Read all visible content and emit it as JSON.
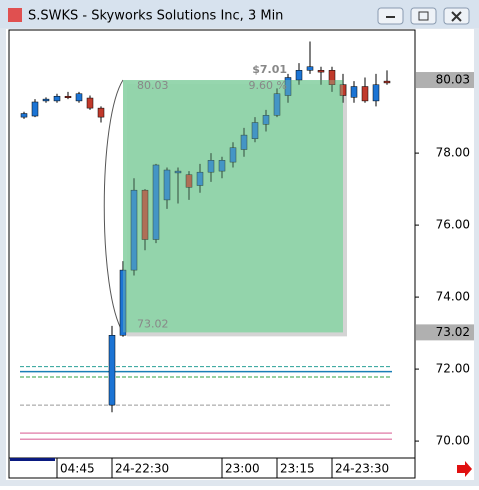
{
  "window_title": "S.SWKS - Skyworks Solutions Inc, 3 Min",
  "chart_data": {
    "type": "candlestick",
    "categories": [
      null,
      null,
      null,
      "04:45",
      null,
      null,
      null,
      null,
      "24-22:30",
      null,
      null,
      null,
      null,
      null,
      null,
      null,
      null,
      null,
      "23:00",
      null,
      null,
      null,
      null,
      "23:15",
      null,
      null,
      null,
      null,
      "24-23:30",
      null,
      null,
      null,
      null,
      null
    ],
    "open": [
      79.0,
      79.03,
      79.45,
      79.45,
      79.58,
      79.45,
      79.53,
      79.25,
      71.0,
      72.94,
      74.75,
      76.97,
      75.6,
      76.7,
      77.45,
      77.4,
      77.1,
      77.47,
      77.5,
      77.75,
      78.1,
      78.4,
      78.8,
      79.05,
      79.6,
      80.03,
      80.3,
      80.3,
      80.3,
      79.9,
      79.55,
      79.85,
      79.45,
      80.0
    ],
    "high": [
      79.15,
      79.5,
      79.55,
      79.65,
      79.7,
      79.7,
      79.6,
      79.3,
      73.2,
      75.0,
      77.3,
      77.0,
      77.7,
      77.6,
      77.6,
      77.5,
      77.7,
      78.0,
      77.9,
      78.3,
      78.7,
      79.0,
      79.2,
      79.8,
      80.2,
      80.5,
      81.1,
      80.4,
      80.4,
      80.2,
      80.0,
      80.1,
      80.2,
      80.3
    ],
    "low": [
      78.95,
      79.0,
      79.4,
      79.4,
      79.5,
      79.4,
      79.2,
      78.85,
      70.8,
      72.9,
      74.6,
      75.3,
      75.5,
      76.45,
      76.6,
      76.7,
      76.9,
      77.2,
      77.3,
      77.6,
      77.9,
      78.3,
      78.6,
      79.0,
      79.4,
      79.9,
      80.2,
      79.9,
      79.7,
      79.4,
      79.4,
      79.4,
      79.3,
      79.9
    ],
    "close": [
      79.1,
      79.42,
      79.5,
      79.58,
      79.55,
      79.65,
      79.25,
      79.0,
      72.94,
      74.75,
      76.97,
      75.6,
      77.67,
      77.53,
      77.5,
      77.05,
      77.47,
      77.8,
      77.8,
      78.15,
      78.5,
      78.85,
      79.05,
      79.65,
      80.1,
      80.3,
      80.4,
      80.25,
      79.9,
      79.6,
      79.85,
      79.45,
      79.9,
      79.95
    ],
    "up_color": "#1c74d4",
    "down_color": "#c0392b",
    "ylim": [
      69.53,
      81.42
    ],
    "yticks": [
      {
        "value": 70,
        "label": "70.00"
      },
      {
        "value": 72,
        "label": "72.00"
      },
      {
        "value": 74,
        "label": "74.00"
      },
      {
        "value": 76,
        "label": "76.00"
      },
      {
        "value": 78,
        "label": "78.00"
      }
    ],
    "range_box": {
      "high": 80.03,
      "low": 73.02,
      "start": 9,
      "end": 29,
      "change": "$7.01",
      "change_pct": "9.60 %",
      "color": "#8fd4a8"
    },
    "reference_lines": [
      {
        "value": 72.07,
        "color": "#2aa198",
        "dash": true
      },
      {
        "value": 71.93,
        "color": "#1a7fb5",
        "dash": false
      },
      {
        "value": 71.78,
        "color": "#2ea043",
        "dash": true
      },
      {
        "value": 71.0,
        "color": "#999999",
        "dash": true
      },
      {
        "value": 70.22,
        "color": "#e58fb5",
        "dash": false
      },
      {
        "value": 70.05,
        "color": "#e58fb5",
        "dash": false
      }
    ]
  }
}
